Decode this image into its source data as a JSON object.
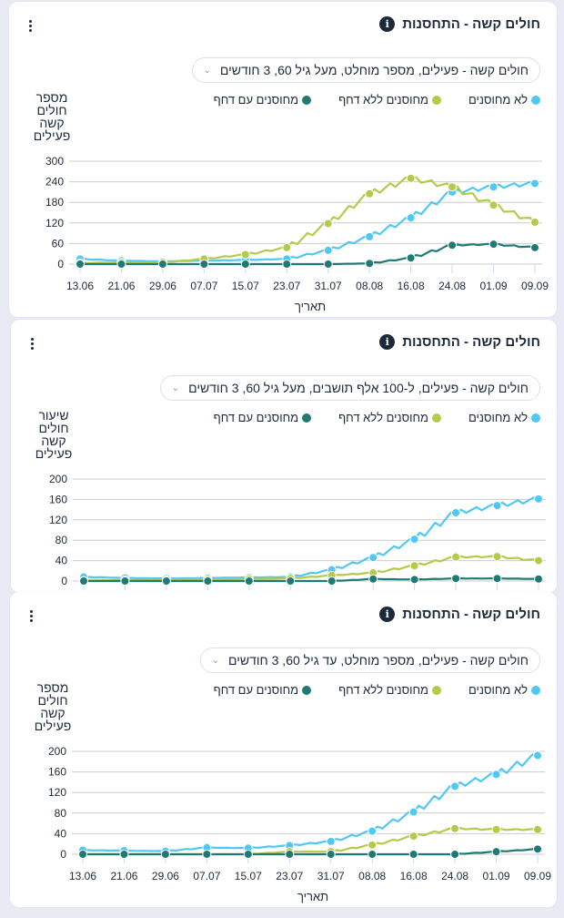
{
  "colors": {
    "unvaccinated": "#50c8f4",
    "vaccinated_no_booster": "#b5c94a",
    "vaccinated_with_booster": "#1f7a74",
    "grid": "#cccccc"
  },
  "cards": [
    {
      "title": "חולים קשה - התחסנות",
      "info_icon": "i",
      "selector": "חולים קשה - פעילים, מספר מוחלט, מעל גיל 60, 3 חודשים",
      "legend": [
        "לא מחוסנים",
        "מחוסנים ללא דחף",
        "מחוסנים עם דחף"
      ],
      "ylabel": "מספר חולים קשה פעילים",
      "xlabel": "תאריך"
    },
    {
      "title": "חולים קשה - התחסנות",
      "info_icon": "i",
      "selector": "חולים קשה - פעילים, ל-100 אלף תושבים, מעל גיל 60, 3 חודשים",
      "legend": [
        "לא מחוסנים",
        "מחוסנים ללא דחף",
        "מחוסנים עם דחף"
      ],
      "ylabel": "שיעור חולים קשה פעילים",
      "xlabel": "תאריך"
    },
    {
      "title": "חולים קשה - התחסנות",
      "info_icon": "i",
      "selector": "חולים קשה - פעילים, מספר מוחלט, עד גיל 60, 3 חודשים",
      "legend": [
        "לא מחוסנים",
        "מחוסנים ללא דחף",
        "מחוסנים עם דחף"
      ],
      "ylabel": "מספר חולים קשה פעילים",
      "xlabel": "תאריך"
    }
  ],
  "chart_data": [
    {
      "type": "line",
      "title": "חולים קשה - התחסנות",
      "xlabel": "תאריך",
      "ylabel": "מספר חולים קשה פעילים",
      "categories": [
        "13.06",
        "21.06",
        "29.06",
        "07.07",
        "15.07",
        "23.07",
        "31.07",
        "08.08",
        "16.08",
        "24.08",
        "01.09",
        "09.09"
      ],
      "yticks": [
        0,
        60,
        120,
        180,
        240,
        300
      ],
      "ylim": [
        0,
        300
      ],
      "grid": true,
      "legend_position": "top",
      "series": [
        {
          "name": "לא מחוסנים",
          "values": [
            15,
            10,
            8,
            10,
            12,
            15,
            40,
            80,
            135,
            210,
            225,
            235
          ]
        },
        {
          "name": "מחוסנים ללא דחף",
          "values": [
            3,
            5,
            5,
            15,
            28,
            48,
            118,
            205,
            250,
            225,
            172,
            122
          ]
        },
        {
          "name": "מחוסנים עם דחף",
          "values": [
            0,
            0,
            0,
            0,
            0,
            0,
            0,
            2,
            18,
            55,
            58,
            48
          ]
        }
      ]
    },
    {
      "type": "line",
      "title": "חולים קשה - התחסנות",
      "xlabel": "תאריך",
      "ylabel": "שיעור חולים קשה פעילים",
      "categories": [
        "13.06",
        "21.06",
        "29.06",
        "07.07",
        "15.07",
        "23.07",
        "31.07",
        "08.08",
        "16.08",
        "24.08",
        "01.09",
        "09.09"
      ],
      "yticks": [
        0,
        40,
        80,
        120,
        160,
        200
      ],
      "ylim": [
        0,
        200
      ],
      "grid": true,
      "legend_position": "top",
      "series": [
        {
          "name": "לא מחוסנים",
          "values": [
            8,
            6,
            5,
            6,
            7,
            8,
            22,
            46,
            82,
            134,
            148,
            161
          ]
        },
        {
          "name": "מחוסנים ללא דחף",
          "values": [
            1,
            2,
            2,
            3,
            4,
            5,
            11,
            16,
            30,
            47,
            48,
            40
          ]
        },
        {
          "name": "מחוסנים עם דחף",
          "values": [
            0,
            0,
            0,
            0,
            0,
            0,
            0,
            4,
            3,
            5,
            5,
            4
          ]
        }
      ]
    },
    {
      "type": "line",
      "title": "חולים קשה - התחסנות",
      "xlabel": "תאריך",
      "ylabel": "מספר חולים קשה פעילים",
      "categories": [
        "13.06",
        "21.06",
        "29.06",
        "07.07",
        "15.07",
        "23.07",
        "31.07",
        "08.08",
        "16.08",
        "24.08",
        "01.09",
        "09.09"
      ],
      "yticks": [
        0,
        40,
        80,
        120,
        160,
        200
      ],
      "ylim": [
        0,
        200
      ],
      "grid": true,
      "legend_position": "top",
      "series": [
        {
          "name": "לא מחוסנים",
          "values": [
            8,
            7,
            6,
            13,
            12,
            17,
            25,
            45,
            82,
            132,
            155,
            192
          ]
        },
        {
          "name": "מחוסנים ללא דחף",
          "values": [
            0,
            0,
            0,
            0,
            0,
            5,
            5,
            18,
            35,
            50,
            48,
            48
          ]
        },
        {
          "name": "מחוסנים עם דחף",
          "values": [
            0,
            0,
            0,
            0,
            0,
            0,
            0,
            0,
            0,
            0,
            5,
            10
          ]
        }
      ]
    }
  ]
}
